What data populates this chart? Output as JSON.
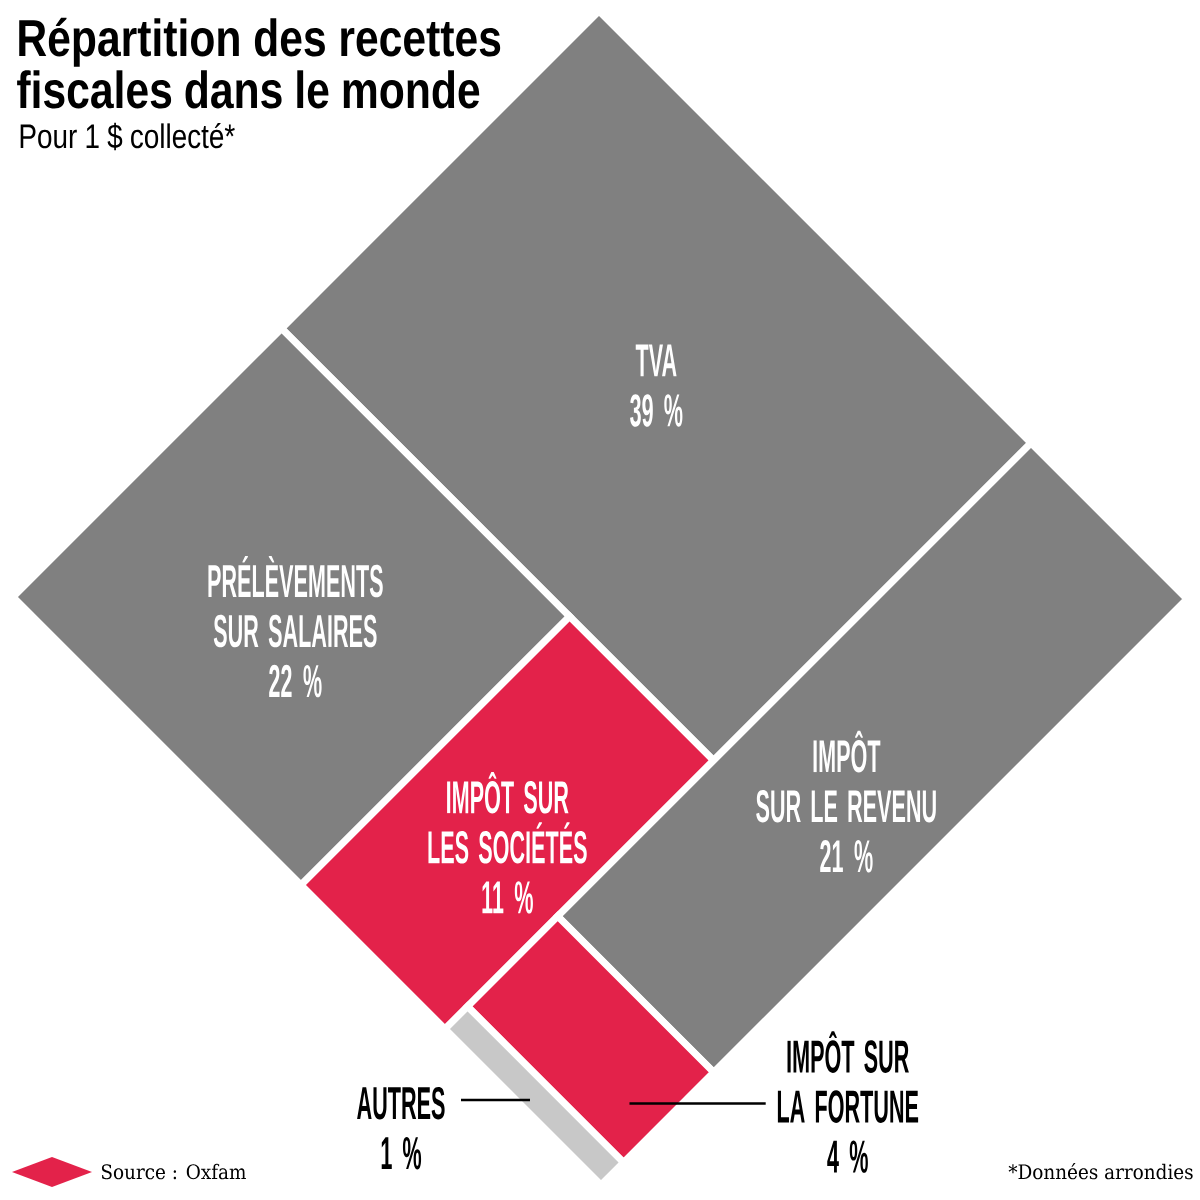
{
  "chart_data": {
    "type": "other",
    "title": "Répartition des recettes fiscales dans le monde",
    "subtitle": "Pour 1 $ collecté*",
    "categories": [
      "TVA",
      "PRÉLÈVEMENTS SUR SALAIRES",
      "IMPÔT SUR LES SOCIÉTÉS",
      "IMPÔT SUR LE REVENU",
      "IMPÔT SUR LA FORTUNE",
      "AUTRES"
    ],
    "values": [
      39,
      22,
      11,
      21,
      4,
      1
    ],
    "value_labels": [
      "39 %",
      "22 %",
      "11 %",
      "21 %",
      "4 %",
      "1 %"
    ],
    "colors": [
      "#808080",
      "#808080",
      "#e3224a",
      "#808080",
      "#e3224a",
      "#c8c8c8"
    ],
    "annotations": [
      "Source : Oxfam",
      "*Données arrondies"
    ]
  }
}
